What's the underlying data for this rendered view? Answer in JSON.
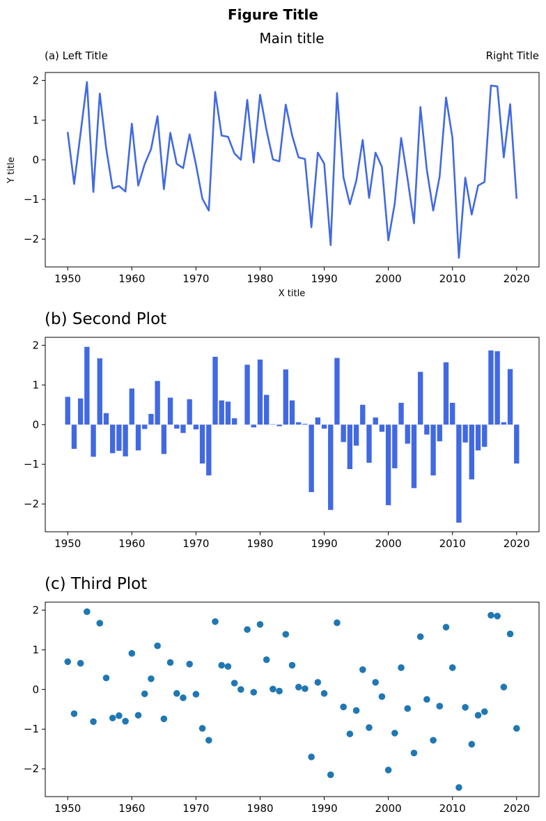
{
  "figure": {
    "suptitle": "Figure Title"
  },
  "colors": {
    "line": "#4169e1",
    "bar": "#4169e1",
    "scatter": "#1f77b4",
    "axis": "#000000"
  },
  "chart_data": [
    {
      "type": "line",
      "title": "Main title",
      "left_title": "(a) Left Title",
      "right_title": "Right Title",
      "xlabel": "X title",
      "ylabel": "Y title",
      "xlim": [
        1946.5,
        2023.5
      ],
      "ylim": [
        -2.7,
        2.2
      ],
      "xticks": [
        1950,
        1960,
        1970,
        1980,
        1990,
        2000,
        2010,
        2020
      ],
      "yticks": [
        -2,
        -1,
        0,
        1,
        2
      ],
      "x": [
        1950,
        1951,
        1952,
        1953,
        1954,
        1955,
        1956,
        1957,
        1958,
        1959,
        1960,
        1961,
        1962,
        1963,
        1964,
        1965,
        1966,
        1967,
        1968,
        1969,
        1970,
        1971,
        1972,
        1973,
        1974,
        1975,
        1976,
        1977,
        1978,
        1979,
        1980,
        1981,
        1982,
        1983,
        1984,
        1985,
        1986,
        1987,
        1988,
        1989,
        1990,
        1991,
        1992,
        1993,
        1994,
        1995,
        1996,
        1997,
        1998,
        1999,
        2000,
        2001,
        2002,
        2003,
        2004,
        2005,
        2006,
        2007,
        2008,
        2009,
        2010,
        2011,
        2012,
        2013,
        2014,
        2015,
        2016,
        2017,
        2018,
        2019,
        2020
      ],
      "values": [
        0.7,
        -0.61,
        0.66,
        1.96,
        -0.81,
        1.67,
        0.29,
        -0.72,
        -0.66,
        -0.8,
        0.91,
        -0.65,
        -0.11,
        0.27,
        1.1,
        -0.74,
        0.68,
        -0.1,
        -0.21,
        0.64,
        -0.12,
        -0.98,
        -1.28,
        1.71,
        0.61,
        0.58,
        0.16,
        0.0,
        1.51,
        -0.07,
        1.64,
        0.75,
        0.01,
        -0.04,
        1.39,
        0.61,
        0.06,
        0.02,
        -1.7,
        0.18,
        -0.1,
        -2.15,
        1.68,
        -0.44,
        -1.12,
        -0.53,
        0.5,
        -0.96,
        0.18,
        -0.18,
        -2.03,
        -1.1,
        0.55,
        -0.48,
        -1.6,
        1.33,
        -0.25,
        -1.28,
        -0.42,
        1.57,
        0.55,
        -2.47,
        -0.45,
        -1.38,
        -0.65,
        -0.56,
        1.87,
        1.85,
        0.06,
        1.4,
        -0.98
      ]
    },
    {
      "type": "bar",
      "title": "(b) Second Plot",
      "xlim": [
        1946.5,
        2023.5
      ],
      "ylim": [
        -2.7,
        2.2
      ],
      "xticks": [
        1950,
        1960,
        1970,
        1980,
        1990,
        2000,
        2010,
        2020
      ],
      "yticks": [
        -2,
        -1,
        0,
        1,
        2
      ],
      "x": [
        1950,
        1951,
        1952,
        1953,
        1954,
        1955,
        1956,
        1957,
        1958,
        1959,
        1960,
        1961,
        1962,
        1963,
        1964,
        1965,
        1966,
        1967,
        1968,
        1969,
        1970,
        1971,
        1972,
        1973,
        1974,
        1975,
        1976,
        1977,
        1978,
        1979,
        1980,
        1981,
        1982,
        1983,
        1984,
        1985,
        1986,
        1987,
        1988,
        1989,
        1990,
        1991,
        1992,
        1993,
        1994,
        1995,
        1996,
        1997,
        1998,
        1999,
        2000,
        2001,
        2002,
        2003,
        2004,
        2005,
        2006,
        2007,
        2008,
        2009,
        2010,
        2011,
        2012,
        2013,
        2014,
        2015,
        2016,
        2017,
        2018,
        2019,
        2020
      ],
      "values": [
        0.7,
        -0.61,
        0.66,
        1.96,
        -0.81,
        1.67,
        0.29,
        -0.72,
        -0.66,
        -0.8,
        0.91,
        -0.65,
        -0.11,
        0.27,
        1.1,
        -0.74,
        0.68,
        -0.1,
        -0.21,
        0.64,
        -0.12,
        -0.98,
        -1.28,
        1.71,
        0.61,
        0.58,
        0.16,
        0.0,
        1.51,
        -0.07,
        1.64,
        0.75,
        0.01,
        -0.04,
        1.39,
        0.61,
        0.06,
        0.02,
        -1.7,
        0.18,
        -0.1,
        -2.15,
        1.68,
        -0.44,
        -1.12,
        -0.53,
        0.5,
        -0.96,
        0.18,
        -0.18,
        -2.03,
        -1.1,
        0.55,
        -0.48,
        -1.6,
        1.33,
        -0.25,
        -1.28,
        -0.42,
        1.57,
        0.55,
        -2.47,
        -0.45,
        -1.38,
        -0.65,
        -0.56,
        1.87,
        1.85,
        0.06,
        1.4,
        -0.98
      ]
    },
    {
      "type": "scatter",
      "title": "(c) Third Plot",
      "xlim": [
        1946.5,
        2023.5
      ],
      "ylim": [
        -2.7,
        2.2
      ],
      "xticks": [
        1950,
        1960,
        1970,
        1980,
        1990,
        2000,
        2010,
        2020
      ],
      "yticks": [
        -2,
        -1,
        0,
        1,
        2
      ],
      "x": [
        1950,
        1951,
        1952,
        1953,
        1954,
        1955,
        1956,
        1957,
        1958,
        1959,
        1960,
        1961,
        1962,
        1963,
        1964,
        1965,
        1966,
        1967,
        1968,
        1969,
        1970,
        1971,
        1972,
        1973,
        1974,
        1975,
        1976,
        1977,
        1978,
        1979,
        1980,
        1981,
        1982,
        1983,
        1984,
        1985,
        1986,
        1987,
        1988,
        1989,
        1990,
        1991,
        1992,
        1993,
        1994,
        1995,
        1996,
        1997,
        1998,
        1999,
        2000,
        2001,
        2002,
        2003,
        2004,
        2005,
        2006,
        2007,
        2008,
        2009,
        2010,
        2011,
        2012,
        2013,
        2014,
        2015,
        2016,
        2017,
        2018,
        2019,
        2020
      ],
      "values": [
        0.7,
        -0.61,
        0.66,
        1.96,
        -0.81,
        1.67,
        0.29,
        -0.72,
        -0.66,
        -0.8,
        0.91,
        -0.65,
        -0.11,
        0.27,
        1.1,
        -0.74,
        0.68,
        -0.1,
        -0.21,
        0.64,
        -0.12,
        -0.98,
        -1.28,
        1.71,
        0.61,
        0.58,
        0.16,
        0.0,
        1.51,
        -0.07,
        1.64,
        0.75,
        0.01,
        -0.04,
        1.39,
        0.61,
        0.06,
        0.02,
        -1.7,
        0.18,
        -0.1,
        -2.15,
        1.68,
        -0.44,
        -1.12,
        -0.53,
        0.5,
        -0.96,
        0.18,
        -0.18,
        -2.03,
        -1.1,
        0.55,
        -0.48,
        -1.6,
        1.33,
        -0.25,
        -1.28,
        -0.42,
        1.57,
        0.55,
        -2.47,
        -0.45,
        -1.38,
        -0.65,
        -0.56,
        1.87,
        1.85,
        0.06,
        1.4,
        -0.98
      ]
    }
  ]
}
